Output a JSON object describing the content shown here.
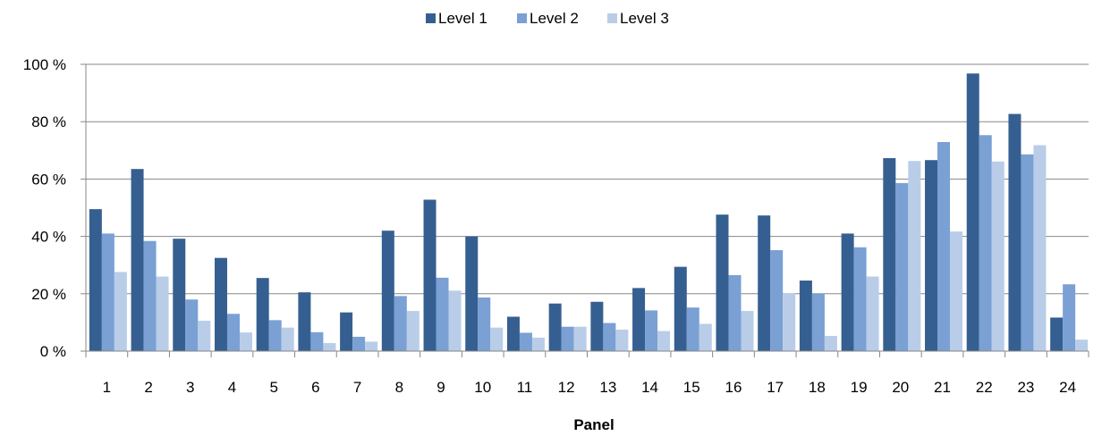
{
  "chart_data": {
    "type": "bar",
    "title": "",
    "xlabel": "Panel",
    "ylabel": "",
    "ylim": [
      0,
      100
    ],
    "y_ticks": [
      "0 %",
      "20 %",
      "40 %",
      "60 %",
      "80 %",
      "100 %"
    ],
    "y_tick_values": [
      0,
      20,
      40,
      60,
      80,
      100
    ],
    "grid": "horizontal",
    "legend_position": "top",
    "categories": [
      "1",
      "2",
      "3",
      "4",
      "5",
      "6",
      "7",
      "8",
      "9",
      "10",
      "11",
      "12",
      "13",
      "14",
      "15",
      "16",
      "17",
      "18",
      "19",
      "20",
      "21",
      "22",
      "23",
      "24"
    ],
    "series": [
      {
        "name": "Level 1",
        "color": "#365f91",
        "values": [
          49.5,
          63.5,
          39.2,
          32.5,
          25.5,
          20.5,
          13.5,
          42.0,
          52.8,
          40.0,
          12.0,
          16.6,
          17.2,
          22.0,
          29.4,
          47.6,
          47.3,
          24.6,
          41.0,
          67.3,
          66.6,
          96.8,
          82.7,
          11.7
        ]
      },
      {
        "name": "Level 2",
        "color": "#7aa0d4",
        "values": [
          41.0,
          38.4,
          18.0,
          13.0,
          10.8,
          6.6,
          5.0,
          19.2,
          25.6,
          18.7,
          6.4,
          8.5,
          9.8,
          14.2,
          15.2,
          26.5,
          35.2,
          20.0,
          36.2,
          58.6,
          72.9,
          75.3,
          68.6,
          23.3
        ]
      },
      {
        "name": "Level 3",
        "color": "#b9cde8",
        "values": [
          27.6,
          26.0,
          10.6,
          6.5,
          8.2,
          2.8,
          3.3,
          14.0,
          21.1,
          8.2,
          4.7,
          8.5,
          7.5,
          7.0,
          9.5,
          14.0,
          20.2,
          5.3,
          26.0,
          66.3,
          41.7,
          66.1,
          71.8,
          4.0
        ]
      }
    ]
  }
}
